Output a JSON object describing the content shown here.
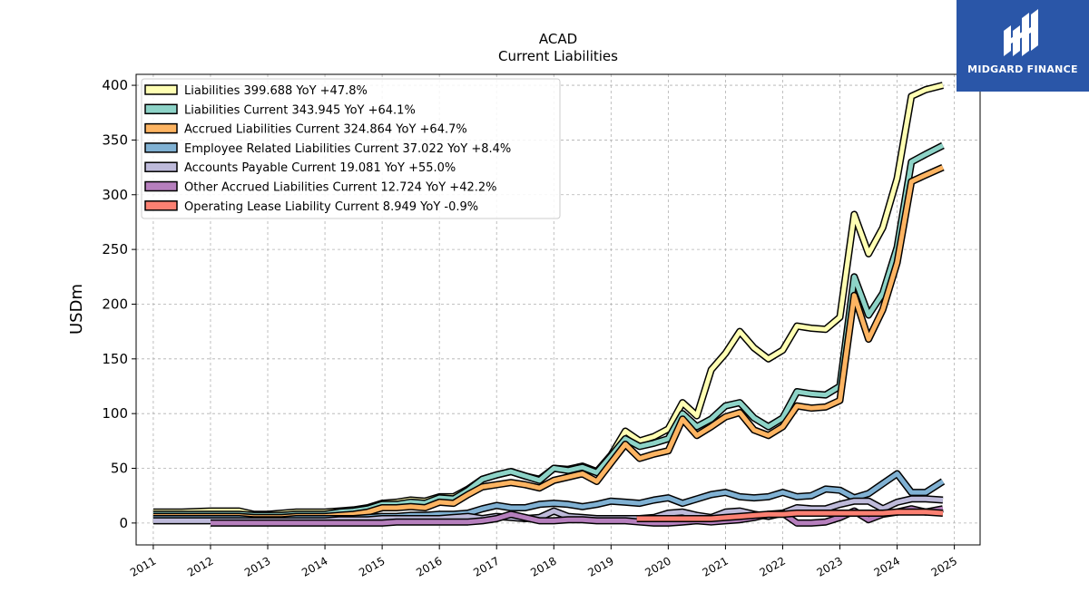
{
  "chart_data": {
    "type": "line",
    "title": "ACAD",
    "subtitle": "Current  Liabilities",
    "ylabel": "USDm",
    "xlabel": "",
    "ylim": [
      -20,
      410
    ],
    "xlim": [
      2010.7,
      2025.45
    ],
    "yticks": [
      0,
      50,
      100,
      150,
      200,
      250,
      300,
      350,
      400
    ],
    "xticks": [
      "2011",
      "2012",
      "2013",
      "2014",
      "2015",
      "2016",
      "2017",
      "2018",
      "2019",
      "2020",
      "2021",
      "2022",
      "2023",
      "2024",
      "2025"
    ],
    "grid": true,
    "legend_position": "top-left",
    "series": [
      {
        "name": "Liabilities",
        "legend": "Liabilities  399.688 YoY +47.8%",
        "color": "#ffffb3",
        "x": [
          2011.0,
          2011.5,
          2012.0,
          2012.5,
          2012.75,
          2013.0,
          2013.25,
          2013.5,
          2013.75,
          2014.0,
          2014.25,
          2014.5,
          2014.75,
          2015.0,
          2015.25,
          2015.5,
          2015.75,
          2016.0,
          2016.25,
          2016.5,
          2016.75,
          2017.0,
          2017.25,
          2017.5,
          2017.75,
          2018.0,
          2018.25,
          2018.5,
          2018.75,
          2019.0,
          2019.25,
          2019.5,
          2019.75,
          2020.0,
          2020.25,
          2020.5,
          2020.75,
          2021.0,
          2021.25,
          2021.5,
          2021.75,
          2022.0,
          2022.25,
          2022.5,
          2022.75,
          2023.0,
          2023.25,
          2023.5,
          2023.75,
          2024.0,
          2024.25,
          2024.5,
          2024.8
        ],
        "y": [
          10,
          10,
          11,
          11,
          8,
          8,
          9,
          10,
          10,
          10,
          11,
          12,
          14,
          18,
          19,
          21,
          20,
          24,
          24,
          31,
          40,
          44,
          47,
          43,
          40,
          50,
          49,
          52,
          47,
          62,
          84,
          75,
          79,
          86,
          110,
          98,
          140,
          155,
          175,
          160,
          150,
          158,
          180,
          178,
          177,
          188,
          282,
          246,
          270,
          315,
          390,
          396,
          400
        ]
      },
      {
        "name": "Liabilities Current",
        "legend": "Liabilities Current  343.945 YoY +64.1%",
        "color": "#8dd3c7",
        "x": [
          2011.0,
          2011.5,
          2012.0,
          2012.5,
          2012.75,
          2013.0,
          2013.25,
          2013.5,
          2013.75,
          2014.0,
          2014.25,
          2014.5,
          2014.75,
          2015.0,
          2015.25,
          2015.5,
          2015.75,
          2016.0,
          2016.25,
          2016.5,
          2016.75,
          2017.0,
          2017.25,
          2017.5,
          2017.75,
          2018.0,
          2018.25,
          2018.5,
          2018.75,
          2019.0,
          2019.25,
          2019.5,
          2019.75,
          2020.0,
          2020.25,
          2020.5,
          2020.75,
          2021.0,
          2021.25,
          2021.5,
          2021.75,
          2022.0,
          2022.25,
          2022.5,
          2022.75,
          2023.0,
          2023.25,
          2023.5,
          2023.75,
          2024.0,
          2024.25,
          2024.5,
          2024.8
        ],
        "y": [
          8,
          8,
          8,
          8,
          7,
          7,
          7,
          8,
          8,
          8,
          10,
          11,
          13,
          17,
          17,
          19,
          18,
          23,
          22,
          30,
          40,
          44,
          47,
          43,
          39,
          50,
          48,
          51,
          46,
          61,
          77,
          70,
          73,
          77,
          100,
          88,
          95,
          107,
          110,
          96,
          88,
          96,
          120,
          118,
          117,
          125,
          225,
          190,
          210,
          252,
          330,
          337,
          345
        ]
      },
      {
        "name": "Accrued Liabilities Current",
        "legend": "Accrued Liabilities Current  324.864 YoY +64.7%",
        "color": "#fdb462",
        "x": [
          2011.0,
          2011.5,
          2012.0,
          2012.5,
          2012.75,
          2013.0,
          2013.25,
          2013.5,
          2013.75,
          2014.0,
          2014.25,
          2014.5,
          2014.75,
          2015.0,
          2015.25,
          2015.5,
          2015.75,
          2016.0,
          2016.25,
          2016.5,
          2016.75,
          2017.0,
          2017.25,
          2017.5,
          2017.75,
          2018.0,
          2018.25,
          2018.5,
          2018.75,
          2019.0,
          2019.25,
          2019.5,
          2019.75,
          2020.0,
          2020.25,
          2020.5,
          2020.75,
          2021.0,
          2021.25,
          2021.5,
          2021.75,
          2022.0,
          2022.25,
          2022.5,
          2022.75,
          2023.0,
          2023.25,
          2023.5,
          2023.75,
          2024.0,
          2024.25,
          2024.5,
          2024.8
        ],
        "y": [
          6,
          6,
          6,
          6,
          5,
          5,
          5,
          6,
          6,
          6,
          7,
          8,
          10,
          14,
          14,
          15,
          14,
          19,
          18,
          26,
          33,
          35,
          37,
          35,
          32,
          39,
          42,
          45,
          38,
          55,
          72,
          59,
          63,
          66,
          95,
          80,
          88,
          97,
          101,
          85,
          80,
          88,
          107,
          105,
          106,
          112,
          208,
          168,
          195,
          238,
          312,
          318,
          325
        ]
      },
      {
        "name": "Employee Related Liabilities Current",
        "legend": "Employee Related Liabilities Current  37.022 YoY +8.4%",
        "color": "#80b1d3",
        "x": [
          2011.0,
          2011.5,
          2012.0,
          2012.5,
          2012.75,
          2013.0,
          2013.25,
          2013.5,
          2013.75,
          2014.0,
          2014.25,
          2014.5,
          2014.75,
          2015.0,
          2015.25,
          2015.5,
          2015.75,
          2016.0,
          2016.25,
          2016.5,
          2016.75,
          2017.0,
          2017.25,
          2017.5,
          2017.75,
          2018.0,
          2018.25,
          2018.5,
          2018.75,
          2019.0,
          2019.25,
          2019.5,
          2019.75,
          2020.0,
          2020.25,
          2020.5,
          2020.75,
          2021.0,
          2021.25,
          2021.5,
          2021.75,
          2022.0,
          2022.25,
          2022.5,
          2022.75,
          2023.0,
          2023.25,
          2023.5,
          2023.75,
          2024.0,
          2024.25,
          2024.5,
          2024.8
        ],
        "y": [
          4,
          4,
          4,
          4,
          3,
          3,
          3,
          4,
          4,
          4,
          4,
          4,
          5,
          6,
          6,
          7,
          7,
          8,
          8,
          9,
          13,
          16,
          14,
          14,
          17,
          18,
          17,
          15,
          17,
          20,
          19,
          18,
          21,
          23,
          18,
          22,
          26,
          28,
          24,
          23,
          24,
          28,
          24,
          25,
          31,
          30,
          23,
          27,
          36,
          45,
          28,
          28,
          38
        ]
      },
      {
        "name": "Accounts Payable Current",
        "legend": "Accounts Payable Current  19.081 YoY +55.0%",
        "color": "#bebada",
        "x": [
          2011.0,
          2011.5,
          2012.0,
          2012.5,
          2012.75,
          2013.0,
          2013.25,
          2013.5,
          2013.75,
          2014.0,
          2014.25,
          2014.5,
          2014.75,
          2015.0,
          2015.25,
          2015.5,
          2015.75,
          2016.0,
          2016.25,
          2016.5,
          2016.75,
          2017.0,
          2017.25,
          2017.5,
          2017.75,
          2018.0,
          2018.25,
          2018.5,
          2018.75,
          2019.0,
          2019.25,
          2019.5,
          2019.75,
          2020.0,
          2020.25,
          2020.5,
          2020.75,
          2021.0,
          2021.25,
          2021.5,
          2021.75,
          2022.0,
          2022.25,
          2022.5,
          2022.75,
          2023.0,
          2023.25,
          2023.5,
          2023.75,
          2024.0,
          2024.25,
          2024.5,
          2024.8
        ],
        "y": [
          2,
          2,
          2,
          2,
          2,
          2,
          2,
          2,
          2,
          2,
          3,
          3,
          3,
          4,
          4,
          4,
          4,
          4,
          5,
          6,
          4,
          6,
          5,
          4,
          5,
          11,
          6,
          5,
          4,
          4,
          4,
          4,
          5,
          9,
          10,
          7,
          5,
          10,
          11,
          8,
          6,
          9,
          14,
          13,
          13,
          17,
          20,
          20,
          13,
          19,
          22,
          22,
          21
        ]
      },
      {
        "name": "Other Accrued Liabilities Current",
        "legend": "Other Accrued Liabilities Current  12.724 YoY +42.2%",
        "color": "#b67fbd",
        "x": [
          2012.0,
          2012.5,
          2012.75,
          2013.0,
          2013.25,
          2013.5,
          2013.75,
          2014.0,
          2014.25,
          2014.5,
          2014.75,
          2015.0,
          2015.25,
          2015.5,
          2015.75,
          2016.0,
          2016.25,
          2016.5,
          2016.75,
          2017.0,
          2017.25,
          2017.5,
          2017.75,
          2018.0,
          2018.25,
          2018.5,
          2018.75,
          2019.0,
          2019.25,
          2019.5,
          2019.75,
          2020.0,
          2020.25,
          2020.5,
          2020.75,
          2021.0,
          2021.25,
          2021.5,
          2021.75,
          2022.0,
          2022.25,
          2022.5,
          2022.75,
          2023.0,
          2023.25,
          2023.5,
          2023.75,
          2024.0,
          2024.25,
          2024.5,
          2024.8
        ],
        "y": [
          0,
          0,
          0,
          0,
          0,
          0,
          0,
          0,
          0,
          0,
          0,
          0,
          1,
          1,
          1,
          1,
          1,
          1,
          2,
          4,
          8,
          5,
          2,
          2,
          3,
          3,
          2,
          2,
          2,
          1,
          0,
          0,
          1,
          2,
          1,
          2,
          3,
          5,
          8,
          9,
          0,
          0,
          1,
          5,
          11,
          3,
          8,
          10,
          13,
          10,
          13
        ]
      },
      {
        "name": "Operating Lease Liability Current",
        "legend": "Operating Lease Liability Current  8.949 YoY -0.9%",
        "color": "#fb8072",
        "x": [
          2019.45,
          2019.75,
          2020.0,
          2020.25,
          2020.5,
          2020.75,
          2021.0,
          2021.25,
          2021.5,
          2021.75,
          2022.0,
          2022.25,
          2022.5,
          2022.75,
          2023.0,
          2023.25,
          2023.5,
          2023.75,
          2024.0,
          2024.25,
          2024.5,
          2024.8
        ],
        "y": [
          4,
          4,
          4,
          4,
          4,
          4,
          5,
          6,
          7,
          8,
          8,
          9,
          9,
          9,
          9,
          9,
          9,
          9,
          10,
          10,
          10,
          9
        ]
      }
    ]
  },
  "logo": {
    "text": "MIDGARD FINANCE"
  }
}
